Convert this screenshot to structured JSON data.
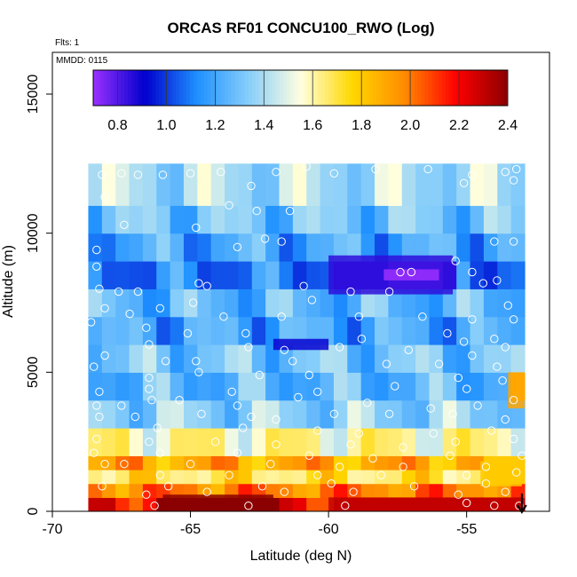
{
  "chart_data": {
    "type": "heatmap",
    "title": "ORCAS RF01 CONCU100_RWO (Log)",
    "flights_note": "Flts: 1",
    "date_note": "MMDD: 0115",
    "xlabel": "Latitude (deg N)",
    "ylabel": "Altitude (m)",
    "xlim": [
      -70,
      -52
    ],
    "ylim": [
      0,
      16500
    ],
    "x_ticks": [
      -70,
      -65,
      -60,
      -55
    ],
    "x_tick_labels": [
      "-70",
      "-65",
      "-60",
      "-55"
    ],
    "y_ticks": [
      0,
      5000,
      10000,
      15000
    ],
    "y_tick_labels": [
      "0",
      "5000",
      "10000",
      "15000"
    ],
    "colorbar": {
      "min": 0.7,
      "max": 2.4,
      "ticks": [
        0.8,
        1.0,
        1.2,
        1.4,
        1.6,
        1.8,
        2.0,
        2.2,
        2.4
      ],
      "tick_labels": [
        "0.8",
        "1.0",
        "1.2",
        "1.4",
        "1.6",
        "1.8",
        "2.0",
        "2.2",
        "2.4"
      ],
      "colors": [
        "#9b30ff",
        "#0000cd",
        "#1e90ff",
        "#87cefa",
        "#ffffe0",
        "#ffd700",
        "#ff8c00",
        "#ff0000",
        "#8b0000"
      ]
    },
    "data_extent": {
      "lat": [
        -68.7,
        -52.9
      ],
      "alt": [
        0,
        12500
      ]
    },
    "layers": [
      {
        "alt": [
          0,
          500
        ],
        "value": 2.2
      },
      {
        "alt": [
          500,
          1000
        ],
        "value": 2.0
      },
      {
        "alt": [
          1000,
          1500
        ],
        "value": 1.7
      },
      {
        "alt": [
          1500,
          2000
        ],
        "value": 1.9
      },
      {
        "alt": [
          2000,
          3000
        ],
        "value": 1.6
      },
      {
        "alt": [
          3000,
          4000
        ],
        "value": 1.35
      },
      {
        "alt": [
          4000,
          5000
        ],
        "value": 1.25
      },
      {
        "alt": [
          5000,
          6000
        ],
        "value": 1.3
      },
      {
        "alt": [
          6000,
          7000
        ],
        "value": 1.2
      },
      {
        "alt": [
          7000,
          8000
        ],
        "value": 1.25
      },
      {
        "alt": [
          8000,
          9000
        ],
        "value": 1.1
      },
      {
        "alt": [
          9000,
          10000
        ],
        "value": 1.2
      },
      {
        "alt": [
          10000,
          11000
        ],
        "value": 1.3
      },
      {
        "alt": [
          11000,
          12500
        ],
        "value": 1.4
      }
    ],
    "features": [
      {
        "lat": [
          -60,
          -55.5
        ],
        "alt": [
          7800,
          9200
        ],
        "value": 0.85
      },
      {
        "lat": [
          -58,
          -56
        ],
        "alt": [
          8300,
          8700
        ],
        "value": 0.7
      },
      {
        "lat": [
          -62,
          -60
        ],
        "alt": [
          5800,
          6200
        ],
        "value": 0.9
      },
      {
        "lat": [
          -66,
          -62
        ],
        "alt": [
          0,
          600
        ],
        "value": 2.4
      },
      {
        "lat": [
          -60,
          -53
        ],
        "alt": [
          0,
          500
        ],
        "value": 2.3
      },
      {
        "lat": [
          -53.5,
          -52.9
        ],
        "alt": [
          3700,
          5000
        ],
        "value": 1.9
      },
      {
        "lat": [
          -54.5,
          -53
        ],
        "alt": [
          900,
          1800
        ],
        "value": 1.8
      }
    ],
    "samples": [
      [
        -68.2,
        12100
      ],
      [
        -67.5,
        12150
      ],
      [
        -66.9,
        12100
      ],
      [
        -66.0,
        12100
      ],
      [
        -65.0,
        12150
      ],
      [
        -63.9,
        12200
      ],
      [
        -62.8,
        11700
      ],
      [
        -61.9,
        12200
      ],
      [
        -60.8,
        12400
      ],
      [
        -59.8,
        12150
      ],
      [
        -58.3,
        12300
      ],
      [
        -56.4,
        12300
      ],
      [
        -54.8,
        12100
      ],
      [
        -53.6,
        12200
      ],
      [
        -53.3,
        11900
      ],
      [
        -53.2,
        12300
      ],
      [
        -55.1,
        11800
      ],
      [
        -68.1,
        11300
      ],
      [
        -63.6,
        11000
      ],
      [
        -62.6,
        10800
      ],
      [
        -61.4,
        10800
      ],
      [
        -67.4,
        10300
      ],
      [
        -64.8,
        10200
      ],
      [
        -62.3,
        9800
      ],
      [
        -61.7,
        9700
      ],
      [
        -68.4,
        9400
      ],
      [
        -55.4,
        9000
      ],
      [
        -54.0,
        9700
      ],
      [
        -53.3,
        9700
      ],
      [
        -63.3,
        9500
      ],
      [
        -68.4,
        8800
      ],
      [
        -64.7,
        8200
      ],
      [
        -60.9,
        8100
      ],
      [
        -57.4,
        8600
      ],
      [
        -57.0,
        8600
      ],
      [
        -54.8,
        8600
      ],
      [
        -68.3,
        8000
      ],
      [
        -67.6,
        7900
      ],
      [
        -66.9,
        7900
      ],
      [
        -64.4,
        8100
      ],
      [
        -60.6,
        7600
      ],
      [
        -59.2,
        7900
      ],
      [
        -57.8,
        7900
      ],
      [
        -54.4,
        8200
      ],
      [
        -53.9,
        8300
      ],
      [
        -53.5,
        7400
      ],
      [
        -68.1,
        7300
      ],
      [
        -67.2,
        7100
      ],
      [
        -66.1,
        7300
      ],
      [
        -64.9,
        7500
      ],
      [
        -63.8,
        7000
      ],
      [
        -61.7,
        7000
      ],
      [
        -58.9,
        7000
      ],
      [
        -56.6,
        7000
      ],
      [
        -54.8,
        6900
      ],
      [
        -53.3,
        6900
      ],
      [
        -68.6,
        6800
      ],
      [
        -66.6,
        6600
      ],
      [
        -65.1,
        6400
      ],
      [
        -63.0,
        6400
      ],
      [
        -58.8,
        6200
      ],
      [
        -55.7,
        6400
      ],
      [
        -55.1,
        6100
      ],
      [
        -54.0,
        6200
      ],
      [
        -66.5,
        6000
      ],
      [
        -62.9,
        5900
      ],
      [
        -61.6,
        5800
      ],
      [
        -59.6,
        5900
      ],
      [
        -57.1,
        5800
      ],
      [
        -54.8,
        5600
      ],
      [
        -53.6,
        5900
      ],
      [
        -68.1,
        5600
      ],
      [
        -68.5,
        5200
      ],
      [
        -65.9,
        5400
      ],
      [
        -64.8,
        5400
      ],
      [
        -61.3,
        5400
      ],
      [
        -57.9,
        5300
      ],
      [
        -56.0,
        5300
      ],
      [
        -53.9,
        5200
      ],
      [
        -66.5,
        4800
      ],
      [
        -64.7,
        5000
      ],
      [
        -62.5,
        4900
      ],
      [
        -60.7,
        4900
      ],
      [
        -55.3,
        4800
      ],
      [
        -68.3,
        4300
      ],
      [
        -66.5,
        4400
      ],
      [
        -63.5,
        4300
      ],
      [
        -60.4,
        4300
      ],
      [
        -57.6,
        4500
      ],
      [
        -55.0,
        4400
      ],
      [
        -53.7,
        4700
      ],
      [
        -68.4,
        3800
      ],
      [
        -67.5,
        3800
      ],
      [
        -66.4,
        4000
      ],
      [
        -65.4,
        4000
      ],
      [
        -63.3,
        3800
      ],
      [
        -61.1,
        4100
      ],
      [
        -58.6,
        3900
      ],
      [
        -56.3,
        3700
      ],
      [
        -54.6,
        3800
      ],
      [
        -53.3,
        4000
      ],
      [
        -68.3,
        3400
      ],
      [
        -67.0,
        3400
      ],
      [
        -64.6,
        3500
      ],
      [
        -62.8,
        3400
      ],
      [
        -61.9,
        3300
      ],
      [
        -59.8,
        3500
      ],
      [
        -57.8,
        3500
      ],
      [
        -55.5,
        3500
      ],
      [
        -53.6,
        3300
      ],
      [
        -66.2,
        3000
      ],
      [
        -63.1,
        3000
      ],
      [
        -60.4,
        2900
      ],
      [
        -58.9,
        2800
      ],
      [
        -56.2,
        2800
      ],
      [
        -54.1,
        2900
      ],
      [
        -68.4,
        2600
      ],
      [
        -66.5,
        2500
      ],
      [
        -64.1,
        2500
      ],
      [
        -61.9,
        2400
      ],
      [
        -59.2,
        2400
      ],
      [
        -57.3,
        2300
      ],
      [
        -55.4,
        2500
      ],
      [
        -53.3,
        2600
      ],
      [
        -68.5,
        2100
      ],
      [
        -66.1,
        2100
      ],
      [
        -63.3,
        2100
      ],
      [
        -60.7,
        2000
      ],
      [
        -58.4,
        1900
      ],
      [
        -55.6,
        2000
      ],
      [
        -53.0,
        2000
      ],
      [
        -68.1,
        1700
      ],
      [
        -67.4,
        1700
      ],
      [
        -65.0,
        1700
      ],
      [
        -62.1,
        1700
      ],
      [
        -59.6,
        1600
      ],
      [
        -57.3,
        1600
      ],
      [
        -54.3,
        1600
      ],
      [
        -66.1,
        1300
      ],
      [
        -63.6,
        1300
      ],
      [
        -60.4,
        1300
      ],
      [
        -58.1,
        1300
      ],
      [
        -55.0,
        1300
      ],
      [
        -53.2,
        1400
      ],
      [
        -68.2,
        900
      ],
      [
        -65.8,
        900
      ],
      [
        -62.4,
        900
      ],
      [
        -59.9,
        1000
      ],
      [
        -56.9,
        900
      ],
      [
        -54.3,
        1000
      ],
      [
        -66.6,
        600
      ],
      [
        -64.4,
        700
      ],
      [
        -61.6,
        700
      ],
      [
        -59.1,
        700
      ],
      [
        -55.3,
        600
      ],
      [
        -53.6,
        700
      ],
      [
        -66.3,
        200
      ],
      [
        -62.9,
        200
      ],
      [
        -59.4,
        200
      ],
      [
        -55.0,
        300
      ],
      [
        -54.0,
        200
      ],
      [
        -53.1,
        200
      ]
    ],
    "end_marker": {
      "lat": -53.0,
      "alt": 0
    }
  }
}
